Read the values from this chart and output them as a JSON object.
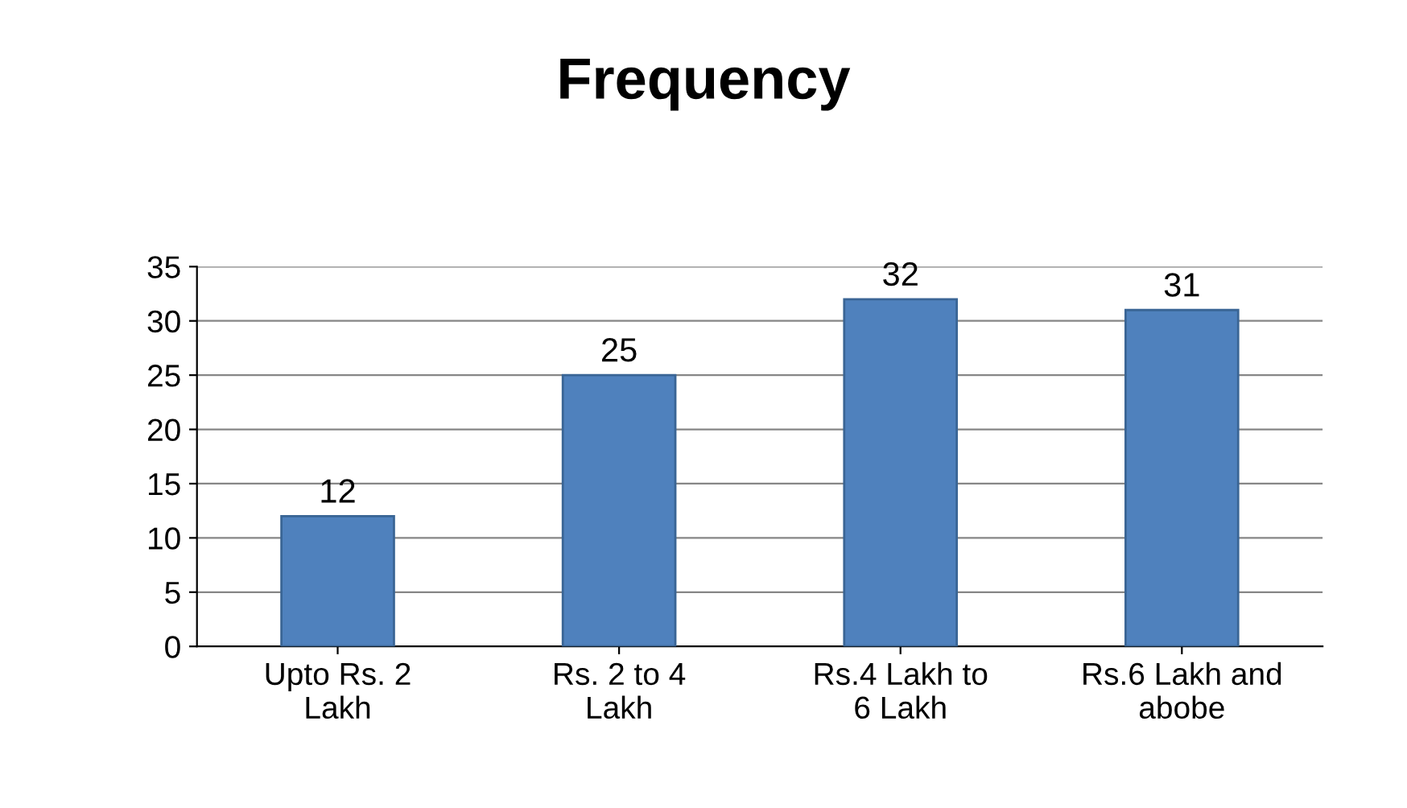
{
  "chart_data": {
    "type": "bar",
    "title": "Frequency",
    "categories": [
      "Upto Rs. 2\nLakh",
      "Rs. 2 to 4\nLakh",
      "Rs.4 Lakh to\n6 Lakh",
      "Rs.6 Lakh and\nabobe"
    ],
    "values": [
      12,
      25,
      32,
      31
    ],
    "color": "#4f81bd",
    "ylim": [
      0,
      35
    ],
    "yticks": [
      0,
      5,
      10,
      15,
      20,
      25,
      30,
      35
    ],
    "grid": "y",
    "data_labels": true
  }
}
